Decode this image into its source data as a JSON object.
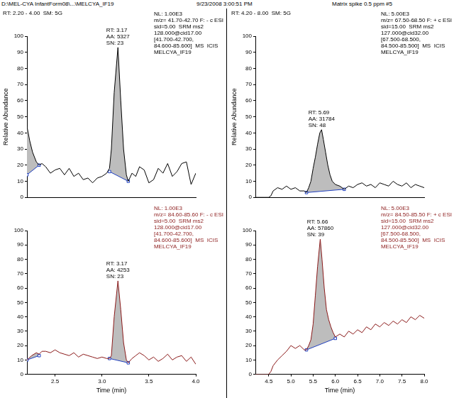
{
  "header": {
    "path": "D:\\MEL-CYA InfantForm08\\...\\MELCYA_IF19",
    "date": "9/23/2008 3:00:51 PM",
    "sample": "Matrix spike 0.5 ppm #5"
  },
  "chart_data": [
    {
      "type": "line",
      "title": "RT: 2.20 - 4.00  SM: 5G",
      "y_label": "Relative Abundance",
      "color": "#000000",
      "grid": false,
      "tick_labels": "y",
      "x": [
        2.2,
        2.23,
        2.26,
        2.3,
        2.33,
        2.36,
        2.4,
        2.45,
        2.5,
        2.55,
        2.6,
        2.65,
        2.7,
        2.75,
        2.8,
        2.85,
        2.9,
        2.95,
        3.0,
        3.05,
        3.08,
        3.1,
        3.13,
        3.17,
        3.2,
        3.23,
        3.26,
        3.28,
        3.32,
        3.36,
        3.4,
        3.45,
        3.5,
        3.55,
        3.6,
        3.65,
        3.7,
        3.75,
        3.8,
        3.85,
        3.9,
        3.95,
        4.0
      ],
      "values": [
        44,
        35,
        28,
        22,
        20,
        21,
        19,
        15,
        17,
        18,
        14,
        18,
        13,
        15,
        11,
        12,
        9,
        12,
        13,
        15,
        18,
        30,
        65,
        93,
        60,
        30,
        14,
        10,
        15,
        13,
        19,
        17,
        9,
        11,
        18,
        15,
        21,
        13,
        16,
        21,
        22,
        8,
        15
      ],
      "xlim": [
        2.2,
        4.0
      ],
      "ylim": [
        0,
        100
      ],
      "yticks": [
        0,
        10,
        20,
        30,
        40,
        50,
        60,
        70,
        80,
        90,
        100
      ],
      "peak_areas": [
        {
          "x": [
            2.2,
            2.33
          ],
          "y": [
            14,
            20
          ]
        },
        {
          "x": [
            3.08,
            3.28
          ],
          "y": [
            16,
            10
          ]
        }
      ],
      "peak_annotation": [
        "RT: 3.17",
        "AA: 5327",
        "SN: 23"
      ],
      "scan_annotation": [
        "NL: 1.00E3",
        "m/z= 41.70-42.70 F: - c ESI",
        "sid=5.00  SRM ms2",
        "128.000@cid17.00",
        "[41.700-42.700,",
        "84.600-85.600]  MS  ICIS",
        "MELCYA_IF19"
      ]
    },
    {
      "type": "line",
      "x_label": "Time (min)",
      "color": "#8b1a1a",
      "grid": false,
      "x": [
        2.2,
        2.25,
        2.3,
        2.33,
        2.36,
        2.4,
        2.45,
        2.5,
        2.55,
        2.6,
        2.65,
        2.7,
        2.75,
        2.8,
        2.85,
        2.9,
        2.95,
        3.0,
        3.05,
        3.08,
        3.1,
        3.13,
        3.17,
        3.2,
        3.23,
        3.26,
        3.28,
        3.32,
        3.36,
        3.4,
        3.45,
        3.5,
        3.55,
        3.6,
        3.65,
        3.7,
        3.75,
        3.8,
        3.85,
        3.9,
        3.95,
        4.0
      ],
      "values": [
        10,
        13,
        15,
        14,
        16,
        16,
        15,
        17,
        15,
        14,
        13,
        15,
        12,
        14,
        13,
        12,
        11,
        12,
        11,
        11,
        13,
        40,
        65,
        45,
        22,
        10,
        8,
        11,
        13,
        15,
        13,
        10,
        12,
        9,
        11,
        14,
        10,
        12,
        13,
        9,
        12,
        7
      ],
      "xlim": [
        2.2,
        4.0
      ],
      "xticks": [
        2.5,
        {
          "value": 3,
          "label": "3.0"
        },
        3.5,
        {
          "value": 4,
          "label": "4.0"
        }
      ],
      "ylim": [
        0,
        100
      ],
      "yticks": [
        0,
        10,
        20,
        30,
        40,
        50,
        60,
        70,
        80,
        90,
        100
      ],
      "peak_areas": [
        {
          "x": [
            2.2,
            2.33
          ],
          "y": [
            10,
            13
          ]
        },
        {
          "x": [
            3.08,
            3.28
          ],
          "y": [
            11,
            8
          ]
        }
      ],
      "peak_annotation": [
        "RT: 3.17",
        "AA: 4253",
        "SN: 23"
      ],
      "scan_annotation": [
        "NL: 1.00E3",
        "m/z= 84.60-85.60 F: - c ESI",
        "sid=5.00  SRM ms2",
        "128.000@cid17.00",
        "[41.700-42.700,",
        "84.600-85.600]  MS  ICIS",
        "MELCYA_IF19"
      ]
    },
    {
      "type": "line",
      "title": "RT: 4.20 - 8.00  SM: 5G",
      "y_label": "Relative Abundance",
      "color": "#000000",
      "grid": false,
      "tick_labels": "y",
      "x": [
        4.2,
        4.3,
        4.4,
        4.5,
        4.55,
        4.6,
        4.7,
        4.8,
        4.9,
        5.0,
        5.1,
        5.2,
        5.3,
        5.35,
        5.4,
        5.45,
        5.5,
        5.55,
        5.6,
        5.65,
        5.69,
        5.73,
        5.78,
        5.83,
        5.88,
        5.93,
        6.0,
        6.1,
        6.2,
        6.3,
        6.4,
        6.5,
        6.6,
        6.7,
        6.8,
        6.9,
        7.0,
        7.1,
        7.2,
        7.3,
        7.4,
        7.5,
        7.6,
        7.7,
        7.8,
        7.9,
        8.0
      ],
      "values": [
        0,
        0,
        0,
        0,
        1,
        4,
        6,
        5,
        7,
        5,
        6,
        4,
        4,
        3,
        6,
        10,
        18,
        25,
        33,
        40,
        42,
        36,
        28,
        20,
        14,
        10,
        8,
        7,
        5,
        7,
        6,
        8,
        9,
        7,
        8,
        6,
        9,
        8,
        7,
        10,
        8,
        7,
        9,
        6,
        8,
        7,
        6
      ],
      "xlim": [
        4.2,
        8.0
      ],
      "ylim": [
        0,
        100
      ],
      "yticks": [
        0,
        10,
        20,
        30,
        40,
        50,
        60,
        70,
        80,
        90,
        100
      ],
      "peak_areas": [
        {
          "x": [
            5.35,
            6.2
          ],
          "y": [
            3,
            5
          ]
        }
      ],
      "peak_annotation": [
        "RT: 5.69",
        "AA: 31784",
        "SN: 48"
      ],
      "scan_annotation": [
        "NL: 5.00E3",
        "m/z= 67.50-68.50 F: + c ESI",
        "sid=15.00  SRM ms2",
        "127.000@cid32.00",
        "[67.500-68.500,",
        "84.500-85.500]  MS  ICIS",
        "MELCYA_IF19"
      ]
    },
    {
      "type": "line",
      "x_label": "Time (min)",
      "color": "#8b1a1a",
      "grid": false,
      "x": [
        4.2,
        4.3,
        4.4,
        4.5,
        4.55,
        4.6,
        4.7,
        4.8,
        4.9,
        5.0,
        5.1,
        5.2,
        5.3,
        5.35,
        5.4,
        5.45,
        5.5,
        5.55,
        5.6,
        5.66,
        5.7,
        5.75,
        5.8,
        5.85,
        5.9,
        5.95,
        6.0,
        6.1,
        6.2,
        6.3,
        6.4,
        6.5,
        6.6,
        6.7,
        6.8,
        6.9,
        7.0,
        7.1,
        7.2,
        7.3,
        7.4,
        7.5,
        7.6,
        7.7,
        7.8,
        7.9,
        8.0
      ],
      "values": [
        0,
        0,
        0,
        0,
        2,
        6,
        10,
        13,
        16,
        20,
        18,
        20,
        17,
        17,
        20,
        24,
        35,
        55,
        75,
        94,
        80,
        60,
        45,
        38,
        33,
        29,
        26,
        28,
        26,
        30,
        28,
        31,
        29,
        33,
        31,
        35,
        33,
        36,
        34,
        37,
        35,
        38,
        36,
        40,
        38,
        41,
        39
      ],
      "xlim": [
        4.2,
        8.0
      ],
      "xticks": [
        4.5,
        {
          "value": 5,
          "label": "5.0"
        },
        5.5,
        {
          "value": 6,
          "label": "6.0"
        },
        6.5,
        {
          "value": 7,
          "label": "7.0"
        },
        7.5,
        {
          "value": 8,
          "label": "8.0"
        }
      ],
      "ylim": [
        0,
        100
      ],
      "yticks": [
        0,
        10,
        20,
        30,
        40,
        50,
        60,
        70,
        80,
        90,
        100
      ],
      "peak_areas": [
        {
          "x": [
            5.35,
            6.0
          ],
          "y": [
            17,
            25
          ]
        }
      ],
      "peak_annotation": [
        "RT: 5.66",
        "AA: 57860",
        "SN: 39"
      ],
      "scan_annotation": [
        "NL: 5.00E3",
        "m/z= 84.50-85.50 F: + c ESI",
        "sid=15.00  SRM ms2",
        "127.000@cid32.00",
        "[67.500-68.500,",
        "84.500-85.500]  MS  ICIS",
        "MELCYA_IF19"
      ]
    }
  ]
}
